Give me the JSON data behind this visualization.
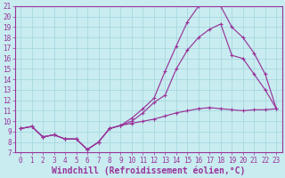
{
  "xlabel": "Windchill (Refroidissement éolien,°C)",
  "bg_color": "#c8ecf0",
  "grid_color": "#a8d8e0",
  "line_color": "#993399",
  "spine_color": "#993399",
  "xlim": [
    -0.5,
    23.5
  ],
  "ylim": [
    7,
    21
  ],
  "xticks": [
    0,
    1,
    2,
    3,
    4,
    5,
    6,
    7,
    8,
    9,
    10,
    11,
    12,
    13,
    14,
    15,
    16,
    17,
    18,
    19,
    20,
    21,
    22,
    23
  ],
  "yticks": [
    7,
    8,
    9,
    10,
    11,
    12,
    13,
    14,
    15,
    16,
    17,
    18,
    19,
    20,
    21
  ],
  "line1_x": [
    0,
    1,
    2,
    3,
    4,
    5,
    6,
    7,
    8,
    9,
    10,
    11,
    12,
    13,
    14,
    15,
    16,
    17,
    18,
    19,
    20,
    21,
    22,
    23
  ],
  "line1_y": [
    9.3,
    9.5,
    8.5,
    8.7,
    8.3,
    8.3,
    7.3,
    8.0,
    9.3,
    9.6,
    9.8,
    10.0,
    10.2,
    10.5,
    10.8,
    11.0,
    11.2,
    11.3,
    11.2,
    11.1,
    11.0,
    11.1,
    11.1,
    11.2
  ],
  "line2_x": [
    0,
    1,
    2,
    3,
    4,
    5,
    6,
    7,
    8,
    9,
    10,
    11,
    12,
    13,
    14,
    15,
    16,
    17,
    18,
    19,
    20,
    21,
    22,
    23
  ],
  "line2_y": [
    9.3,
    9.5,
    8.5,
    8.7,
    8.3,
    8.3,
    7.3,
    8.0,
    9.3,
    9.6,
    10.3,
    11.2,
    12.2,
    14.8,
    17.2,
    19.5,
    21.0,
    21.2,
    21.0,
    19.0,
    18.0,
    16.5,
    14.5,
    11.2
  ],
  "line3_x": [
    0,
    1,
    2,
    3,
    4,
    5,
    6,
    7,
    8,
    9,
    10,
    11,
    12,
    13,
    14,
    15,
    16,
    17,
    18,
    19,
    20,
    21,
    22,
    23
  ],
  "line3_y": [
    9.3,
    9.5,
    8.5,
    8.7,
    8.3,
    8.3,
    7.3,
    8.0,
    9.3,
    9.6,
    10.0,
    10.8,
    11.8,
    12.5,
    15.0,
    16.8,
    18.0,
    18.8,
    19.3,
    16.3,
    16.0,
    14.5,
    13.0,
    11.2
  ],
  "font_color": "#993399",
  "tick_fontsize": 5.5,
  "label_fontsize": 7.0,
  "marker_size": 2.5,
  "line_width": 0.85
}
